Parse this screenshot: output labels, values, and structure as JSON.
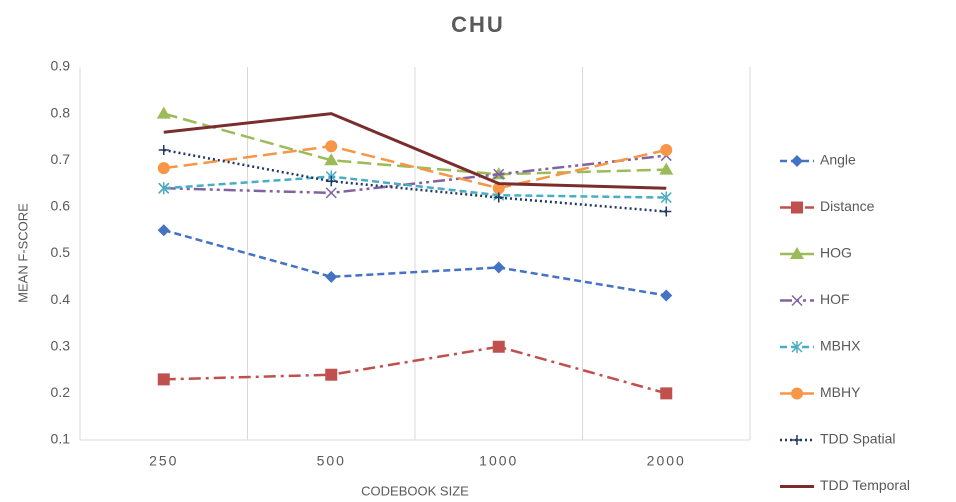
{
  "chart_data": {
    "type": "line",
    "title": "CHU",
    "x_label": "CODEBOOK SIZE",
    "y_label": "MEAN F-SCORE",
    "categories": [
      "250",
      "500",
      "1000",
      "2000"
    ],
    "ylim": [
      0.1,
      0.9
    ],
    "yticks": [
      0.1,
      0.2,
      0.3,
      0.4,
      0.5,
      0.6,
      0.7,
      0.8,
      0.9
    ],
    "grid": "vertical",
    "legend": "right",
    "series": [
      {
        "name": "Angle",
        "color": "#4472c4",
        "dash": "dash",
        "marker": "diamond",
        "values": [
          0.55,
          0.45,
          0.47,
          0.41
        ]
      },
      {
        "name": "Distance",
        "color": "#c0504d",
        "dash": "dashdot",
        "marker": "square",
        "values": [
          0.23,
          0.24,
          0.3,
          0.2
        ]
      },
      {
        "name": "HOG",
        "color": "#9bbb59",
        "dash": "longdash",
        "marker": "triangle",
        "values": [
          0.8,
          0.7,
          0.67,
          0.68
        ]
      },
      {
        "name": "HOF",
        "color": "#8064a2",
        "dash": "dashdotdot",
        "marker": "x",
        "values": [
          0.64,
          0.63,
          0.67,
          0.71
        ]
      },
      {
        "name": "MBHX",
        "color": "#4bacc6",
        "dash": "dash",
        "marker": "asterisk",
        "values": [
          0.64,
          0.665,
          0.625,
          0.62
        ]
      },
      {
        "name": "MBHY",
        "color": "#f79646",
        "dash": "longdash",
        "marker": "circle",
        "values": [
          0.683,
          0.73,
          0.64,
          0.722
        ]
      },
      {
        "name": "TDD Spatial",
        "color": "#1f3864",
        "dash": "dot",
        "marker": "plus",
        "values": [
          0.722,
          0.655,
          0.62,
          0.59
        ]
      },
      {
        "name": "TDD Temporal",
        "color": "#7b2c2c",
        "dash": "solid",
        "marker": "none",
        "values": [
          0.76,
          0.8,
          0.65,
          0.64
        ]
      }
    ]
  }
}
